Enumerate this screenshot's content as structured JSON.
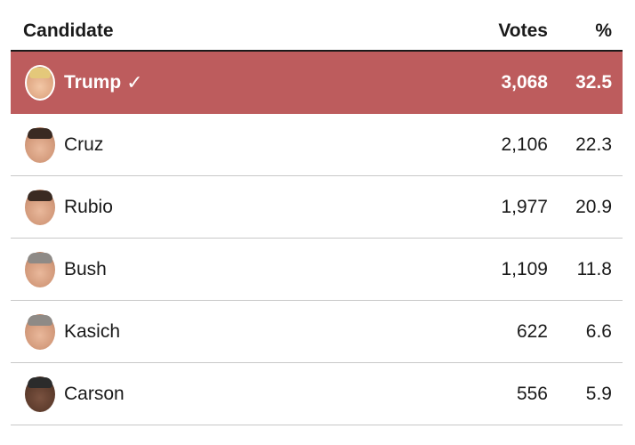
{
  "table": {
    "headers": {
      "candidate": "Candidate",
      "votes": "Votes",
      "pct": "%"
    },
    "winner_mark": "✓",
    "rows": [
      {
        "name": "Trump",
        "votes": "3,068",
        "pct": "32.5",
        "winner": true
      },
      {
        "name": "Cruz",
        "votes": "2,106",
        "pct": "22.3",
        "winner": false
      },
      {
        "name": "Rubio",
        "votes": "1,977",
        "pct": "20.9",
        "winner": false
      },
      {
        "name": "Bush",
        "votes": "1,109",
        "pct": "11.8",
        "winner": false
      },
      {
        "name": "Kasich",
        "votes": "622",
        "pct": "6.6",
        "winner": false
      },
      {
        "name": "Carson",
        "votes": "556",
        "pct": "5.9",
        "winner": false
      }
    ]
  },
  "colors": {
    "winner_row": "#bd5c5d",
    "divider": "#c8c8c8",
    "header_rule": "#1a1a1a"
  }
}
